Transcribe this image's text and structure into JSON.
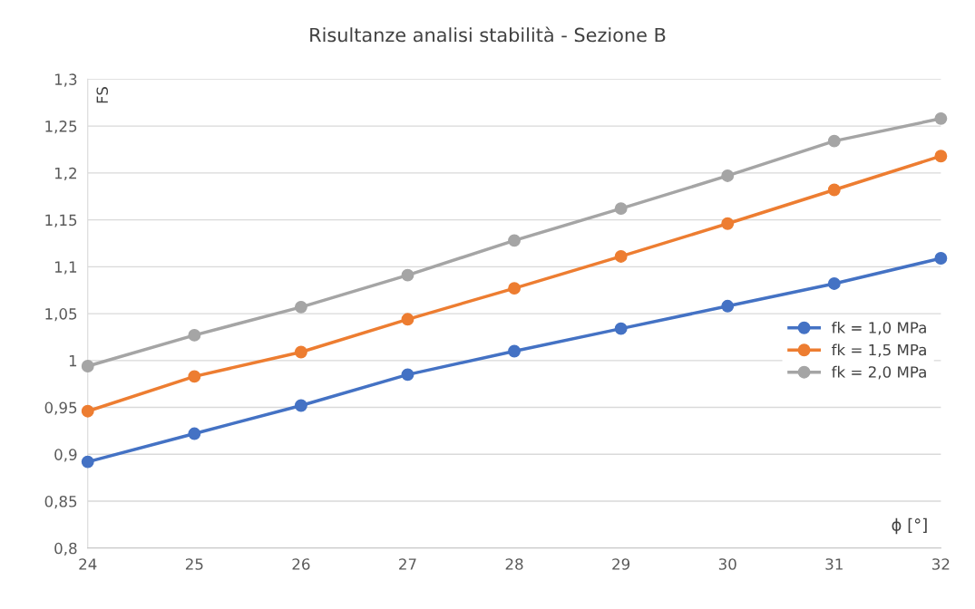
{
  "chart_data": {
    "type": "line",
    "title": "Risultanze analisi stabilità - Sezione B",
    "xlabel": "ϕ [°]",
    "ylabel": "FS",
    "x": [
      24,
      25,
      26,
      27,
      28,
      29,
      30,
      31,
      32
    ],
    "series": [
      {
        "name": "fk = 1,0 MPa",
        "color": "#4472c4",
        "values": [
          0.892,
          0.922,
          0.952,
          0.985,
          1.01,
          1.034,
          1.058,
          1.082,
          1.109
        ]
      },
      {
        "name": "fk = 1,5 MPa",
        "color": "#ed7d31",
        "values": [
          0.946,
          0.983,
          1.009,
          1.044,
          1.077,
          1.111,
          1.146,
          1.182,
          1.218
        ]
      },
      {
        "name": "fk = 2,0 MPa",
        "color": "#a5a5a5",
        "values": [
          0.994,
          1.027,
          1.057,
          1.091,
          1.128,
          1.162,
          1.197,
          1.234,
          1.258
        ]
      }
    ],
    "xlim": [
      24,
      32
    ],
    "xticks": [
      24,
      25,
      26,
      27,
      28,
      29,
      30,
      31,
      32
    ],
    "ylim": [
      0.8,
      1.3
    ],
    "yticks": [
      {
        "value": 0.8,
        "label": "0,8"
      },
      {
        "value": 0.85,
        "label": "0,85"
      },
      {
        "value": 0.9,
        "label": "0,9"
      },
      {
        "value": 0.95,
        "label": "0,95"
      },
      {
        "value": 1,
        "label": "1"
      },
      {
        "value": 1.05,
        "label": "1,05"
      },
      {
        "value": 1.1,
        "label": "1,1"
      },
      {
        "value": 1.15,
        "label": "1,15"
      },
      {
        "value": 1.2,
        "label": "1,2"
      },
      {
        "value": 1.25,
        "label": "1,25"
      },
      {
        "value": 1.3,
        "label": "1,3"
      }
    ],
    "grid": "y",
    "legend": "center right",
    "marker": "circle",
    "line_style": "solid"
  }
}
